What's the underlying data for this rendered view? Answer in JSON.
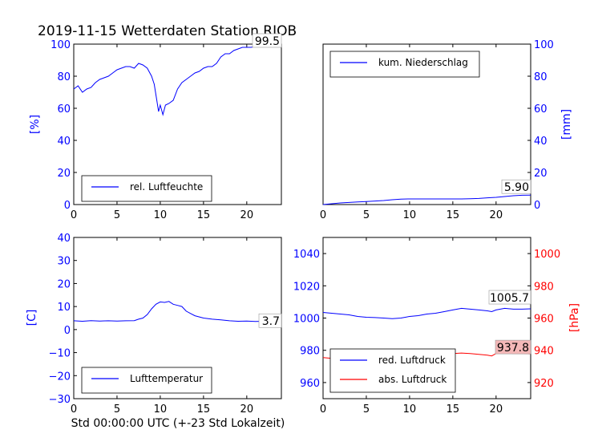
{
  "title": "2019-11-15 Wetterdaten Station RJOB",
  "colors": {
    "blue": "#0000ff",
    "red": "#ff0000",
    "black": "#000000",
    "badge_red": "#f4b8b8"
  },
  "chart_data": [
    {
      "id": "humidity",
      "type": "line",
      "ylabel": "[%]",
      "xlim": [
        0,
        24
      ],
      "ylim": [
        0,
        100
      ],
      "xticks": [
        "0",
        "5",
        "10",
        "15",
        "20"
      ],
      "yticks": [
        "0",
        "20",
        "40",
        "60",
        "80",
        "100"
      ],
      "last_value_label": "99.5",
      "legend": "bottom-left",
      "series": [
        {
          "name": "rel. Luftfeuchte",
          "color": "#0000ff",
          "points": [
            [
              0,
              72
            ],
            [
              0.5,
              74
            ],
            [
              1,
              70
            ],
            [
              1.5,
              72
            ],
            [
              2,
              73
            ],
            [
              2.5,
              76
            ],
            [
              3,
              78
            ],
            [
              3.5,
              79
            ],
            [
              4,
              80
            ],
            [
              4.5,
              82
            ],
            [
              5,
              84
            ],
            [
              5.5,
              85
            ],
            [
              6,
              86
            ],
            [
              6.5,
              86
            ],
            [
              7,
              85
            ],
            [
              7.5,
              88
            ],
            [
              8,
              87
            ],
            [
              8.5,
              85
            ],
            [
              9,
              80
            ],
            [
              9.3,
              75
            ],
            [
              9.6,
              65
            ],
            [
              9.8,
              58
            ],
            [
              10,
              62
            ],
            [
              10.3,
              56
            ],
            [
              10.6,
              62
            ],
            [
              11,
              63
            ],
            [
              11.5,
              65
            ],
            [
              12,
              72
            ],
            [
              12.5,
              76
            ],
            [
              13,
              78
            ],
            [
              13.5,
              80
            ],
            [
              14,
              82
            ],
            [
              14.5,
              83
            ],
            [
              15,
              85
            ],
            [
              15.5,
              86
            ],
            [
              16,
              86
            ],
            [
              16.5,
              88
            ],
            [
              17,
              92
            ],
            [
              17.5,
              94
            ],
            [
              18,
              94
            ],
            [
              18.5,
              96
            ],
            [
              19,
              97
            ],
            [
              19.5,
              98
            ],
            [
              20,
              98
            ],
            [
              20.5,
              98
            ],
            [
              21,
              98.5
            ],
            [
              22,
              99
            ],
            [
              23,
              99
            ],
            [
              24,
              99.5
            ]
          ]
        }
      ]
    },
    {
      "id": "precipitation",
      "type": "line",
      "ylabel": "[mm]",
      "xlim": [
        0,
        24
      ],
      "ylim": [
        0,
        100
      ],
      "xticks": [
        "0",
        "5",
        "10",
        "15",
        "20"
      ],
      "yticks": [
        "0",
        "20",
        "40",
        "60",
        "80",
        "100"
      ],
      "last_value_label": "5.90",
      "legend": "top-left",
      "series": [
        {
          "name": "kum. Niederschlag",
          "color": "#0000ff",
          "points": [
            [
              0,
              0
            ],
            [
              1,
              0.5
            ],
            [
              2,
              1
            ],
            [
              3,
              1.3
            ],
            [
              4,
              1.6
            ],
            [
              5,
              1.9
            ],
            [
              6,
              2.2
            ],
            [
              7,
              2.5
            ],
            [
              8,
              3
            ],
            [
              9,
              3.4
            ],
            [
              10,
              3.5
            ],
            [
              12,
              3.5
            ],
            [
              14,
              3.5
            ],
            [
              16,
              3.5
            ],
            [
              17,
              3.6
            ],
            [
              18,
              3.8
            ],
            [
              19,
              4.2
            ],
            [
              20,
              4.5
            ],
            [
              21,
              5
            ],
            [
              22,
              5.5
            ],
            [
              23,
              5.8
            ],
            [
              24,
              5.9
            ]
          ]
        }
      ]
    },
    {
      "id": "temperature",
      "type": "line",
      "ylabel": "[C]",
      "xlabel": "Std 00:00:00 UTC (+-23 Std Lokalzeit)",
      "xlim": [
        0,
        24
      ],
      "ylim": [
        -30,
        40
      ],
      "xticks": [
        "0",
        "5",
        "10",
        "15",
        "20"
      ],
      "yticks": [
        "−30",
        "−20",
        "−10",
        "0",
        "10",
        "20",
        "30",
        "40"
      ],
      "last_value_label": "3.7",
      "legend": "bottom-left",
      "series": [
        {
          "name": "Lufttemperatur",
          "color": "#0000ff",
          "points": [
            [
              0,
              3.8
            ],
            [
              1,
              3.6
            ],
            [
              2,
              3.9
            ],
            [
              3,
              3.7
            ],
            [
              4,
              3.8
            ],
            [
              5,
              3.7
            ],
            [
              6,
              3.8
            ],
            [
              7,
              3.9
            ],
            [
              7.5,
              4.5
            ],
            [
              8,
              5
            ],
            [
              8.5,
              6.5
            ],
            [
              9,
              9
            ],
            [
              9.5,
              11
            ],
            [
              10,
              12
            ],
            [
              10.5,
              11.8
            ],
            [
              11,
              12.2
            ],
            [
              11.5,
              11
            ],
            [
              12,
              10.5
            ],
            [
              12.5,
              10
            ],
            [
              13,
              8
            ],
            [
              13.5,
              7
            ],
            [
              14,
              6
            ],
            [
              15,
              5
            ],
            [
              16,
              4.5
            ],
            [
              17,
              4.2
            ],
            [
              18,
              3.8
            ],
            [
              19,
              3.6
            ],
            [
              20,
              3.7
            ],
            [
              21,
              3.5
            ],
            [
              22,
              3.6
            ],
            [
              23,
              3.7
            ],
            [
              24,
              3.7
            ]
          ]
        }
      ]
    },
    {
      "id": "pressure",
      "type": "line",
      "ylabel": "[hPa]",
      "xlim": [
        0,
        24
      ],
      "ylim_left": [
        950,
        1050
      ],
      "ylim_right": [
        910,
        1010
      ],
      "xticks": [
        "0",
        "5",
        "10",
        "15",
        "20"
      ],
      "yticks_left": [
        "960",
        "980",
        "1000",
        "1020",
        "1040"
      ],
      "yticks_right": [
        "920",
        "940",
        "960",
        "980",
        "1000"
      ],
      "last_value_label_left": "1005.7",
      "last_value_label_right": "937.8",
      "legend": "bottom-left",
      "series": [
        {
          "name": "red. Luftdruck",
          "axis": "left",
          "color": "#0000ff",
          "points": [
            [
              0,
              1003.5
            ],
            [
              1,
              1003
            ],
            [
              2,
              1002.5
            ],
            [
              3,
              1002
            ],
            [
              4,
              1001
            ],
            [
              5,
              1000.5
            ],
            [
              6,
              1000.3
            ],
            [
              7,
              1000
            ],
            [
              8,
              999.6
            ],
            [
              9,
              1000
            ],
            [
              10,
              1001
            ],
            [
              11,
              1001.5
            ],
            [
              12,
              1002.5
            ],
            [
              13,
              1003
            ],
            [
              14,
              1004
            ],
            [
              15,
              1005
            ],
            [
              16,
              1006
            ],
            [
              17,
              1005.5
            ],
            [
              18,
              1005
            ],
            [
              19,
              1004.5
            ],
            [
              19.5,
              1004
            ],
            [
              20,
              1005
            ],
            [
              21,
              1006
            ],
            [
              22,
              1005.5
            ],
            [
              23,
              1005.5
            ],
            [
              24,
              1005.7
            ]
          ]
        },
        {
          "name": "abs. Luftdruck",
          "axis": "right",
          "color": "#ff0000",
          "points": [
            [
              0,
              935.5
            ],
            [
              1,
              935
            ],
            [
              2,
              934.5
            ],
            [
              3,
              934
            ],
            [
              4,
              933
            ],
            [
              5,
              932.5
            ],
            [
              6,
              932.3
            ],
            [
              7,
              932.5
            ],
            [
              8,
              933
            ],
            [
              9,
              933.5
            ],
            [
              10,
              934.5
            ],
            [
              11,
              935
            ],
            [
              12,
              935.5
            ],
            [
              13,
              936
            ],
            [
              14,
              937
            ],
            [
              15,
              938
            ],
            [
              16,
              938.3
            ],
            [
              17,
              938
            ],
            [
              18,
              937.5
            ],
            [
              19,
              937
            ],
            [
              19.5,
              936.5
            ],
            [
              20,
              938
            ],
            [
              21,
              938.5
            ],
            [
              22,
              938
            ],
            [
              23,
              938
            ],
            [
              24,
              937.8
            ]
          ]
        }
      ]
    }
  ]
}
